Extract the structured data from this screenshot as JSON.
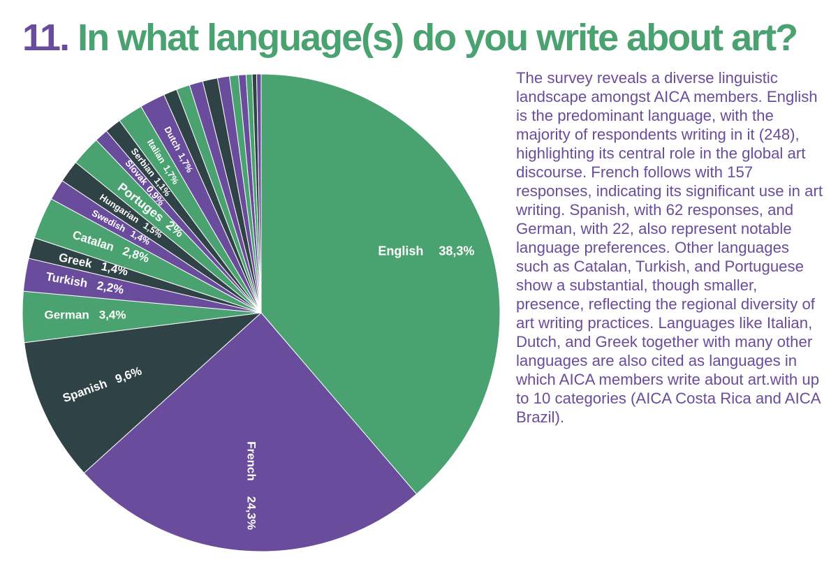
{
  "header": {
    "number": "11.",
    "question": "In what language(s) do you write about art?"
  },
  "description": "The survey reveals a diverse linguistic landscape amongst AICA members. English is the predominant language, with the majority of respondents writing in it (248), highlighting its central role in the global art discourse. French follows with 157 responses, indicating its significant use in art writing. Spanish, with 62 responses, and German, with 22, also represent notable language preferences. Other languages such as Catalan, Turkish, and Portuguese show a substantial, though smaller, presence, reflecting the regional diversity of art writing practices. Languages like Italian, Dutch, and Greek together with many other languages are also cited as languages in which AICA members write about art.with up to 10 categories (AICA Costa Rica and AICA Brazil).",
  "colors": {
    "green": "#4aa271",
    "purple": "#6a4c9c",
    "dark": "#2f4246"
  },
  "chart_data": {
    "type": "pie",
    "title": "11. In what language(s) do you write about art?",
    "start": "top, clockwise",
    "slices": [
      {
        "label": "English",
        "pct_label": "38,3%",
        "value": 38.3,
        "color": "green"
      },
      {
        "label": "French",
        "pct_label": "24,3%",
        "value": 24.3,
        "color": "purple"
      },
      {
        "label": "Spanish",
        "pct_label": "9,6%",
        "value": 9.6,
        "color": "dark"
      },
      {
        "label": "German",
        "pct_label": "3,4%",
        "value": 3.4,
        "color": "green"
      },
      {
        "label": "Turkish",
        "pct_label": "2,2%",
        "value": 2.2,
        "color": "purple"
      },
      {
        "label": "Greek",
        "pct_label": "1,4%",
        "value": 1.4,
        "color": "dark"
      },
      {
        "label": "Catalan",
        "pct_label": "2,8%",
        "value": 2.8,
        "color": "green"
      },
      {
        "label": "Swedish",
        "pct_label": "1,4%",
        "value": 1.4,
        "color": "purple"
      },
      {
        "label": "Hungarian",
        "pct_label": "1,5%",
        "value": 1.5,
        "color": "dark"
      },
      {
        "label": "Portuges",
        "pct_label": "2%",
        "value": 2.0,
        "color": "green"
      },
      {
        "label": "Slovak",
        "pct_label": "0,9%",
        "value": 0.9,
        "color": "purple"
      },
      {
        "label": "Serbian",
        "pct_label": "1,1%",
        "value": 1.1,
        "color": "dark"
      },
      {
        "label": "Italian",
        "pct_label": "1,7%",
        "value": 1.7,
        "color": "green"
      },
      {
        "label": "Dutch",
        "pct_label": "1,7%",
        "value": 1.7,
        "color": "purple"
      },
      {
        "label": "",
        "pct_label": "",
        "value": 0.9,
        "color": "dark"
      },
      {
        "label": "",
        "pct_label": "",
        "value": 0.9,
        "color": "green"
      },
      {
        "label": "",
        "pct_label": "",
        "value": 0.9,
        "color": "purple"
      },
      {
        "label": "",
        "pct_label": "",
        "value": 1.0,
        "color": "dark"
      },
      {
        "label": "",
        "pct_label": "",
        "value": 0.8,
        "color": "purple"
      },
      {
        "label": "",
        "pct_label": "",
        "value": 0.6,
        "color": "green"
      },
      {
        "label": "",
        "pct_label": "",
        "value": 0.5,
        "color": "purple"
      },
      {
        "label": "",
        "pct_label": "",
        "value": 0.4,
        "color": "green"
      },
      {
        "label": "",
        "pct_label": "",
        "value": 0.3,
        "color": "dark"
      },
      {
        "label": "",
        "pct_label": "",
        "value": 0.3,
        "color": "purple"
      }
    ]
  }
}
